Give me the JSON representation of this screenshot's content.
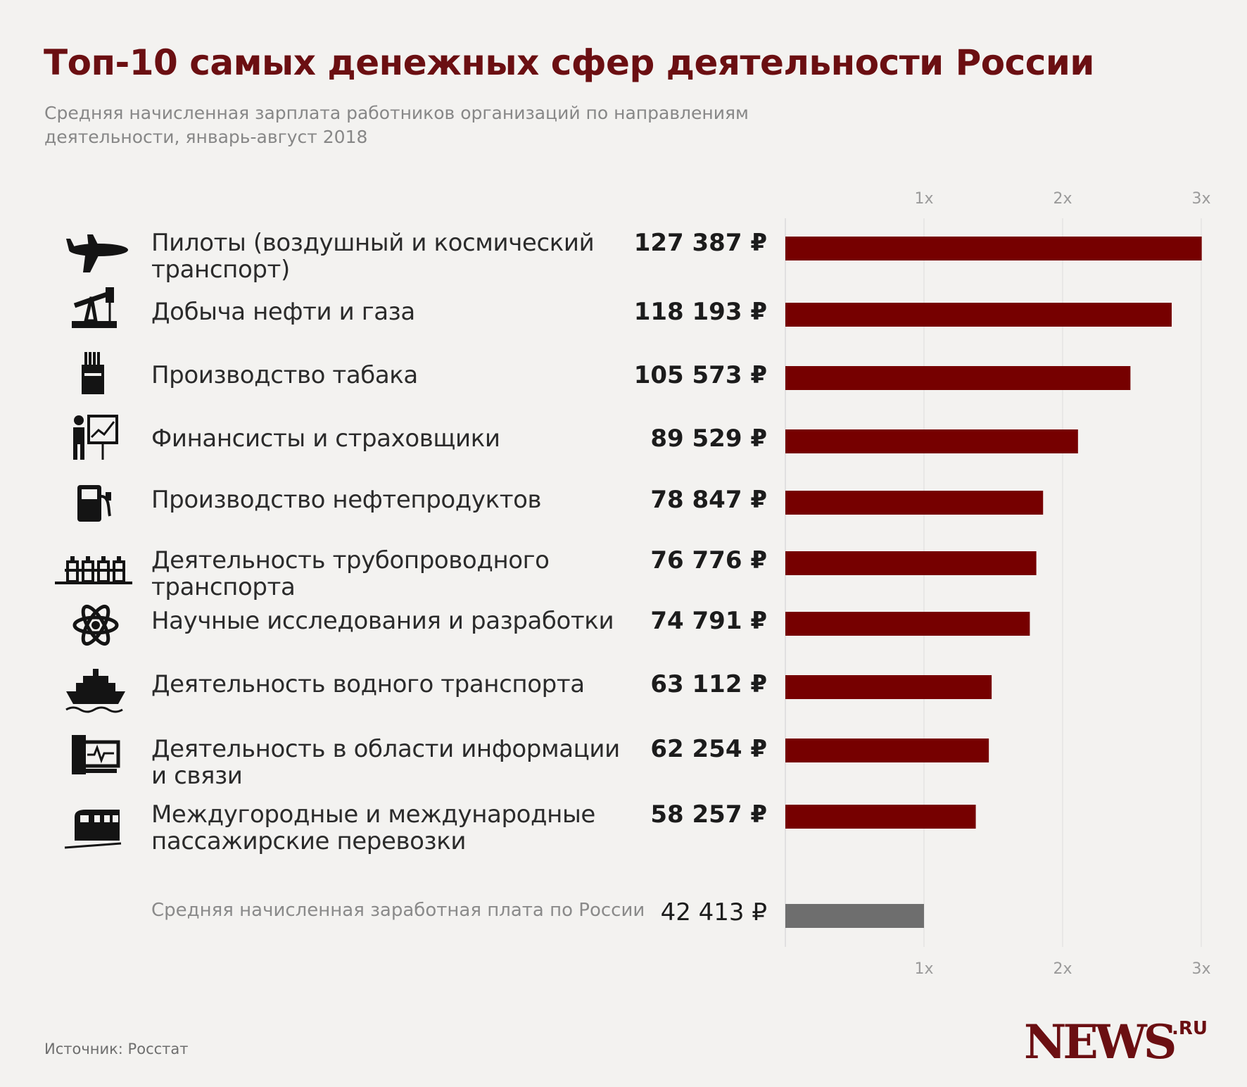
{
  "title": "Топ-10 самых денежных сфер деятельности России",
  "subtitle": "Средняя начисленная зарплата работников организаций по направлениям деятельности, январь-август 2018",
  "chart_data": {
    "type": "bar",
    "orientation": "horizontal",
    "title": "Топ-10 самых денежных сфер деятельности России",
    "x_ticks": [
      "1x",
      "2x",
      "3x"
    ],
    "xlim": [
      0,
      3
    ],
    "baseline": 42413,
    "bar_color": "#760000",
    "avg_bar_color": "#6e6e6e",
    "categories": [
      "Пилоты (воздушный и космический транспорт)",
      "Добыча нефти и газа",
      "Производство табака",
      "Финансисты и страховщики",
      "Производство нефтепродуктов",
      "Деятельность трубопроводного транспорта",
      "Научные исследования и разработки",
      "Деятельность водного транспорта",
      "Деятельность в области информации и связи",
      "Междугородные и международные пассажирские перевозки"
    ],
    "values": [
      127387,
      118193,
      105573,
      89529,
      78847,
      76776,
      74791,
      63112,
      62254,
      58257
    ],
    "value_labels": [
      "127 387 ₽",
      "118 193 ₽",
      "105 573 ₽",
      "89 529 ₽",
      "78 847 ₽",
      "76 776 ₽",
      "74 791 ₽",
      "63 112 ₽",
      "62 254 ₽",
      "58 257 ₽"
    ],
    "average": {
      "label": "Средняя начисленная заработная плата по России",
      "value": 42413,
      "value_label": "42 413 ₽"
    }
  },
  "rows": [
    {
      "label_line1": "Пилоты (воздушный и космический",
      "label_line2": "транспорт)",
      "icon": "airplane-icon"
    },
    {
      "label_line1": "Добыча нефти и газа",
      "label_line2": "",
      "icon": "oil-pump-icon"
    },
    {
      "label_line1": "Производство табака",
      "label_line2": "",
      "icon": "cigarette-pack-icon"
    },
    {
      "label_line1": "Финансисты и страховщики",
      "label_line2": "",
      "icon": "presenter-chart-icon"
    },
    {
      "label_line1": "Производство нефтепродуктов",
      "label_line2": "",
      "icon": "fuel-pump-icon"
    },
    {
      "label_line1": "Деятельность трубопроводного транспорта",
      "label_line2": "",
      "icon": "pipeline-icon"
    },
    {
      "label_line1": "Научные исследования и разработки",
      "label_line2": "",
      "icon": "atom-icon"
    },
    {
      "label_line1": "Деятельность водного транспорта",
      "label_line2": "",
      "icon": "ship-icon"
    },
    {
      "label_line1": "Деятельность в области информации",
      "label_line2": "и связи",
      "icon": "computer-monitor-icon"
    },
    {
      "label_line1": "Междугородные и международные",
      "label_line2": "пассажирские перевозки",
      "icon": "train-icon"
    }
  ],
  "source": "Источник: Росстат",
  "logo": {
    "text": "NEWS",
    "suffix": ".RU"
  }
}
